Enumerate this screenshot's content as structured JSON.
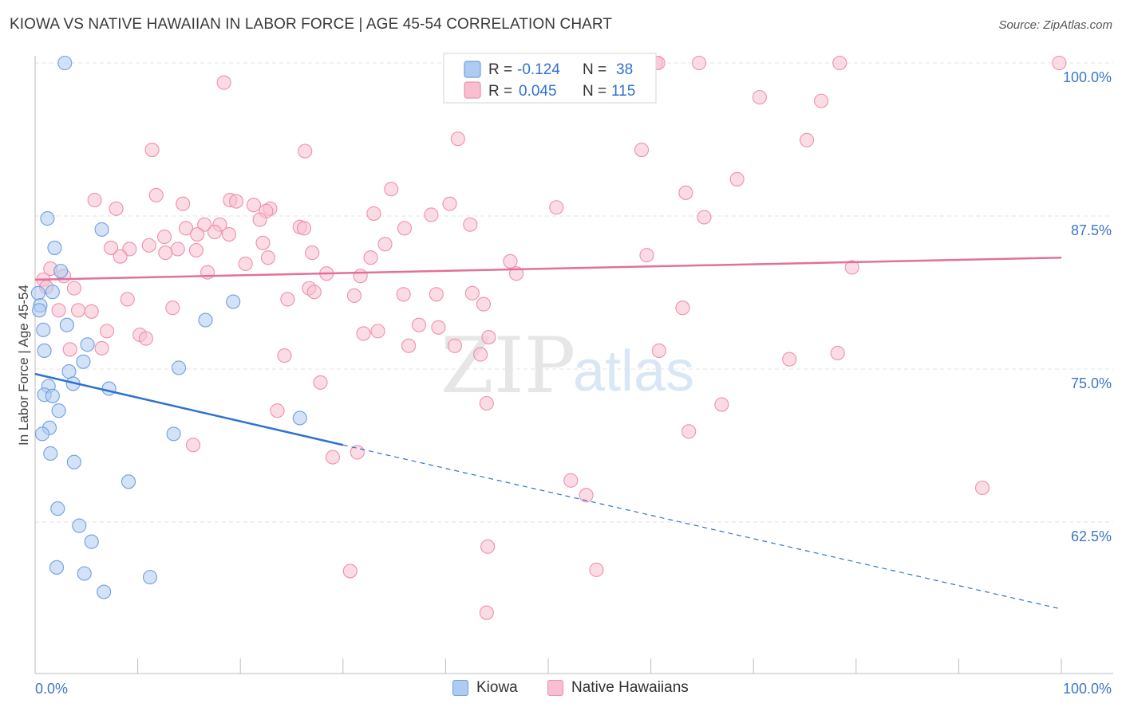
{
  "header": {
    "title": "KIOWA VS NATIVE HAWAIIAN IN LABOR FORCE | AGE 45-54 CORRELATION CHART",
    "source": "Source: ZipAtlas.com"
  },
  "watermark": {
    "zip": "ZIP",
    "atlas": "atlas"
  },
  "colors": {
    "kiowa_fill": "#aecbf1",
    "kiowa_stroke": "#6f9fe0",
    "kiowa_line": "#2f72d0",
    "hawaiian_fill": "#f7bfd0",
    "hawaiian_stroke": "#ee8fae",
    "hawaiian_line": "#e2709a",
    "axis_label": "#3d76c9",
    "grid": "#e3e3e3"
  },
  "legend_top": {
    "rows": [
      {
        "r_label": "R =",
        "r_value": "-0.124",
        "n_label": "N =",
        "n_value": "38"
      },
      {
        "r_label": "R =",
        "r_value": "0.045",
        "n_label": "N =",
        "n_value": "115"
      }
    ]
  },
  "legend_bottom": {
    "items": [
      "Kiowa",
      "Native Hawaiians"
    ]
  },
  "chart_data": {
    "type": "scatter",
    "title": "KIOWA VS NATIVE HAWAIIAN IN LABOR FORCE | AGE 45-54 CORRELATION CHART",
    "xlabel": "",
    "ylabel": "In Labor Force | Age 45-54",
    "xlim": [
      0,
      100
    ],
    "ylim": [
      50.5,
      101.5
    ],
    "x_tick_labels": [
      "0.0%",
      "100.0%"
    ],
    "y_ticks": [
      62.5,
      75.0,
      87.5,
      100.0
    ],
    "y_tick_labels": [
      "62.5%",
      "75.0%",
      "87.5%",
      "100.0%"
    ],
    "grid": true,
    "legend": "top-center",
    "series": [
      {
        "name": "Kiowa",
        "r": -0.124,
        "n": 38,
        "trend": {
          "x0": 0,
          "y0": 74.6,
          "x1": 30,
          "y1": 68.8,
          "dashed_to_x": 100,
          "dashed_to_y": 55.4
        },
        "points": [
          [
            2.9,
            100.0
          ],
          [
            1.2,
            87.3
          ],
          [
            6.5,
            86.4
          ],
          [
            1.9,
            84.9
          ],
          [
            2.5,
            83.0
          ],
          [
            0.3,
            81.2
          ],
          [
            1.7,
            81.3
          ],
          [
            0.5,
            80.2
          ],
          [
            0.4,
            79.8
          ],
          [
            19.3,
            80.5
          ],
          [
            16.6,
            79.0
          ],
          [
            0.8,
            78.2
          ],
          [
            3.1,
            78.6
          ],
          [
            0.9,
            76.5
          ],
          [
            5.1,
            77.0
          ],
          [
            4.7,
            75.6
          ],
          [
            3.3,
            74.8
          ],
          [
            14.0,
            75.1
          ],
          [
            3.7,
            73.8
          ],
          [
            1.3,
            73.6
          ],
          [
            7.2,
            73.4
          ],
          [
            0.9,
            72.9
          ],
          [
            1.7,
            72.8
          ],
          [
            2.3,
            71.6
          ],
          [
            25.8,
            71.0
          ],
          [
            1.4,
            70.2
          ],
          [
            0.7,
            69.7
          ],
          [
            13.5,
            69.7
          ],
          [
            1.5,
            68.1
          ],
          [
            3.8,
            67.4
          ],
          [
            9.1,
            65.8
          ],
          [
            2.2,
            63.6
          ],
          [
            4.3,
            62.2
          ],
          [
            5.5,
            60.9
          ],
          [
            2.1,
            58.8
          ],
          [
            4.8,
            58.3
          ],
          [
            11.2,
            58.0
          ],
          [
            6.7,
            56.8
          ]
        ]
      },
      {
        "name": "Native Hawaiians",
        "r": 0.045,
        "n": 115,
        "trend": {
          "x0": 0,
          "y0": 82.3,
          "x1": 100,
          "y1": 84.1
        },
        "points": [
          [
            41.0,
            100.0
          ],
          [
            60.5,
            100.0
          ],
          [
            60.7,
            100.0
          ],
          [
            64.7,
            100.0
          ],
          [
            78.4,
            100.0
          ],
          [
            99.8,
            100.0
          ],
          [
            46.5,
            99.4
          ],
          [
            18.4,
            98.4
          ],
          [
            70.6,
            97.2
          ],
          [
            76.6,
            96.9
          ],
          [
            41.2,
            93.8
          ],
          [
            75.2,
            93.7
          ],
          [
            11.4,
            92.9
          ],
          [
            26.3,
            92.8
          ],
          [
            59.1,
            92.9
          ],
          [
            68.4,
            90.5
          ],
          [
            34.7,
            89.7
          ],
          [
            63.4,
            89.4
          ],
          [
            11.8,
            89.2
          ],
          [
            5.8,
            88.8
          ],
          [
            19.0,
            88.8
          ],
          [
            19.6,
            88.7
          ],
          [
            14.4,
            88.5
          ],
          [
            40.4,
            88.5
          ],
          [
            21.3,
            88.4
          ],
          [
            7.9,
            88.1
          ],
          [
            22.9,
            88.1
          ],
          [
            22.5,
            87.9
          ],
          [
            50.8,
            88.2
          ],
          [
            33.0,
            87.7
          ],
          [
            38.6,
            87.6
          ],
          [
            65.2,
            87.4
          ],
          [
            21.9,
            87.2
          ],
          [
            16.5,
            86.8
          ],
          [
            18.0,
            86.8
          ],
          [
            25.8,
            86.6
          ],
          [
            14.7,
            86.5
          ],
          [
            26.2,
            86.5
          ],
          [
            36.0,
            86.5
          ],
          [
            42.4,
            86.8
          ],
          [
            17.5,
            86.2
          ],
          [
            18.9,
            86.0
          ],
          [
            15.8,
            86.0
          ],
          [
            12.6,
            85.8
          ],
          [
            11.1,
            85.1
          ],
          [
            22.2,
            85.3
          ],
          [
            34.1,
            85.2
          ],
          [
            7.4,
            84.9
          ],
          [
            9.2,
            84.8
          ],
          [
            13.9,
            84.8
          ],
          [
            15.7,
            84.7
          ],
          [
            8.3,
            84.2
          ],
          [
            12.7,
            84.5
          ],
          [
            22.7,
            84.1
          ],
          [
            27.0,
            84.5
          ],
          [
            32.7,
            84.1
          ],
          [
            59.6,
            84.3
          ],
          [
            20.5,
            83.6
          ],
          [
            46.3,
            83.8
          ],
          [
            79.6,
            83.3
          ],
          [
            1.5,
            83.2
          ],
          [
            16.8,
            82.9
          ],
          [
            2.8,
            82.6
          ],
          [
            46.9,
            82.8
          ],
          [
            28.4,
            82.8
          ],
          [
            31.7,
            82.6
          ],
          [
            0.8,
            82.3
          ],
          [
            1.1,
            81.7
          ],
          [
            3.8,
            81.6
          ],
          [
            26.7,
            81.6
          ],
          [
            27.2,
            81.3
          ],
          [
            39.1,
            81.1
          ],
          [
            42.6,
            81.2
          ],
          [
            35.9,
            81.1
          ],
          [
            31.1,
            81.0
          ],
          [
            9.0,
            80.7
          ],
          [
            24.6,
            80.7
          ],
          [
            43.7,
            80.3
          ],
          [
            2.3,
            79.8
          ],
          [
            5.5,
            79.7
          ],
          [
            4.2,
            79.8
          ],
          [
            13.4,
            80.0
          ],
          [
            63.1,
            80.0
          ],
          [
            37.4,
            78.6
          ],
          [
            39.3,
            78.4
          ],
          [
            7.0,
            78.1
          ],
          [
            33.4,
            78.1
          ],
          [
            32.0,
            77.9
          ],
          [
            10.2,
            77.8
          ],
          [
            10.8,
            77.5
          ],
          [
            44.2,
            77.6
          ],
          [
            3.4,
            76.6
          ],
          [
            6.5,
            76.7
          ],
          [
            36.4,
            76.9
          ],
          [
            40.9,
            76.9
          ],
          [
            60.8,
            76.5
          ],
          [
            78.2,
            76.3
          ],
          [
            24.3,
            76.1
          ],
          [
            43.4,
            76.2
          ],
          [
            73.5,
            75.8
          ],
          [
            27.8,
            73.9
          ],
          [
            44.0,
            72.2
          ],
          [
            66.9,
            72.1
          ],
          [
            23.6,
            71.6
          ],
          [
            63.7,
            69.9
          ],
          [
            15.4,
            68.8
          ],
          [
            29.0,
            67.8
          ],
          [
            31.4,
            68.2
          ],
          [
            52.2,
            65.9
          ],
          [
            53.7,
            64.7
          ],
          [
            92.3,
            65.3
          ],
          [
            44.1,
            60.5
          ],
          [
            30.7,
            58.5
          ],
          [
            54.7,
            58.6
          ],
          [
            44.0,
            55.1
          ]
        ]
      }
    ]
  }
}
